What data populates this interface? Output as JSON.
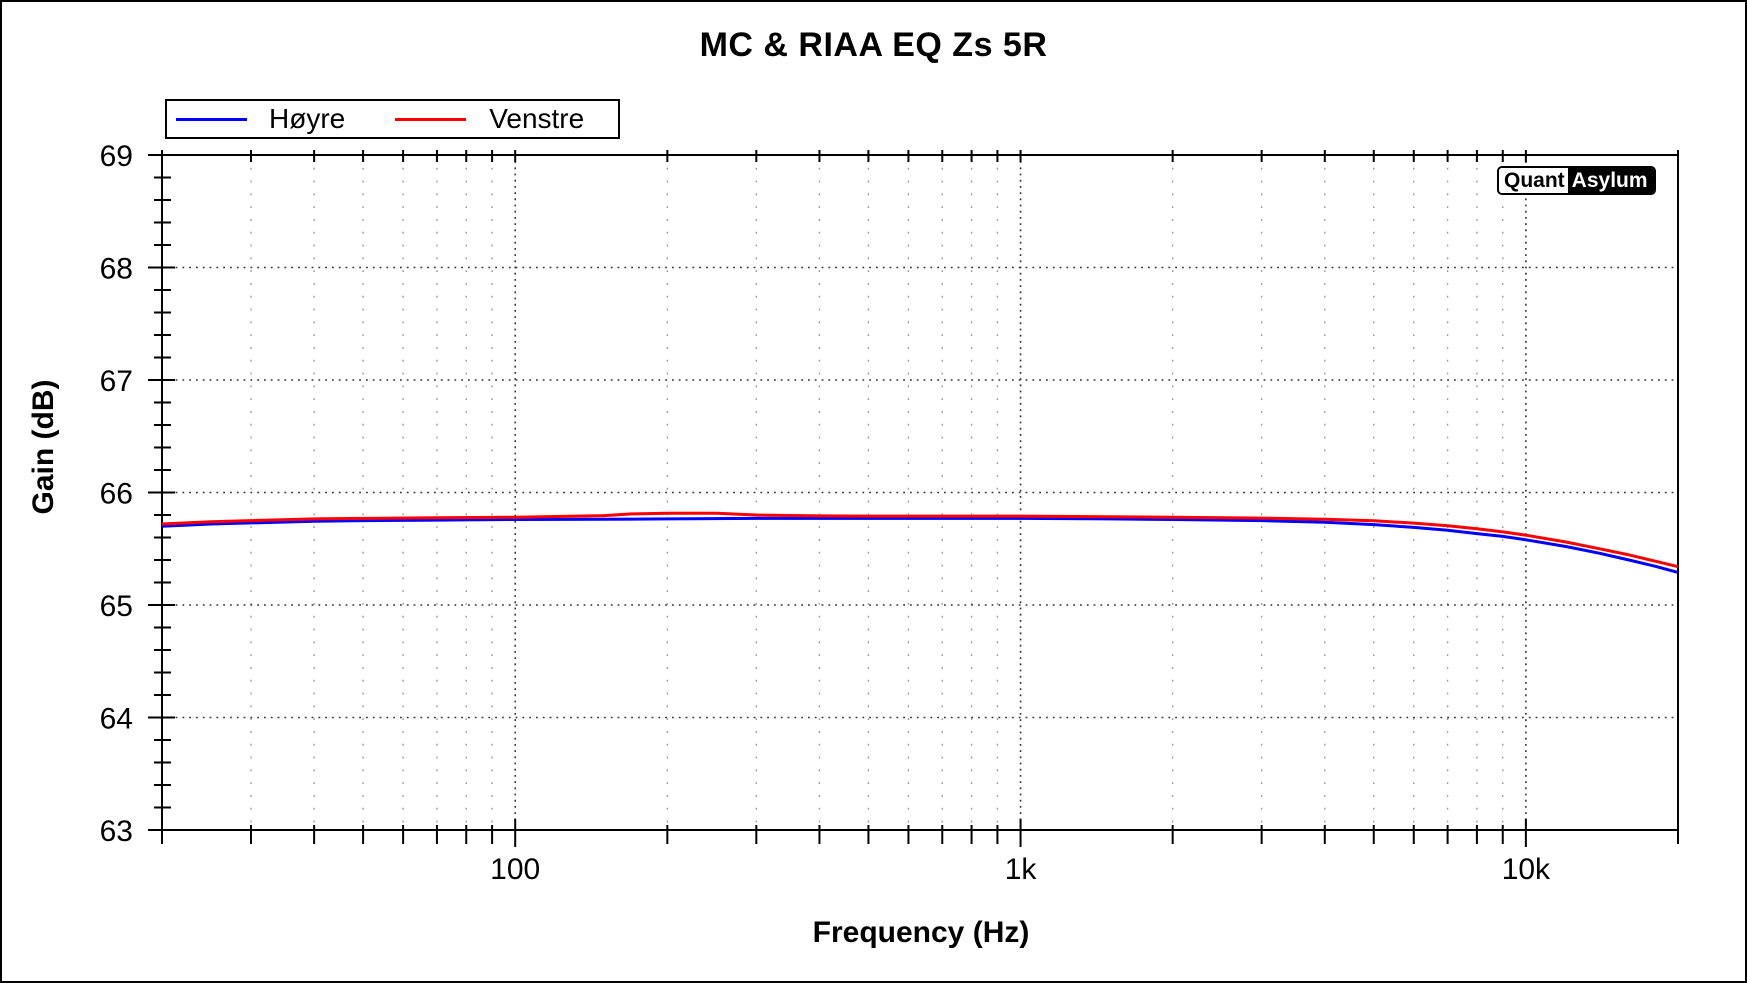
{
  "window": {
    "background": "#ffffff",
    "border_color": "#000000"
  },
  "watermark": {
    "part1": "Quant",
    "part2": "Asylum"
  },
  "chart_data": {
    "type": "line",
    "title": "MC & RIAA EQ Zs 5R",
    "xlabel": "Frequency (Hz)",
    "ylabel": "Gain (dB)",
    "x_scale": "log",
    "xlim": [
      20,
      20000
    ],
    "ylim": [
      63,
      69
    ],
    "y_major_ticks": [
      63,
      64,
      65,
      66,
      67,
      68,
      69
    ],
    "y_minor_step": 0.2,
    "x_major_ticks": [
      {
        "value": 100,
        "label": "100"
      },
      {
        "value": 1000,
        "label": "1k"
      },
      {
        "value": 10000,
        "label": "10k"
      }
    ],
    "x_minor_ticks": [
      20,
      30,
      40,
      50,
      60,
      70,
      80,
      90,
      100,
      200,
      300,
      400,
      500,
      600,
      700,
      800,
      900,
      1000,
      2000,
      3000,
      4000,
      5000,
      6000,
      7000,
      8000,
      9000,
      10000,
      20000
    ],
    "grid": {
      "horizontal_at": [
        64,
        65,
        66,
        67,
        68
      ],
      "vertical": "all_minor_ticks",
      "style": "dotted"
    },
    "legend_position": "top-left",
    "series": [
      {
        "name": "Høyre",
        "color": "#0000ff",
        "points": [
          [
            20,
            65.7
          ],
          [
            25,
            65.72
          ],
          [
            30,
            65.73
          ],
          [
            40,
            65.745
          ],
          [
            50,
            65.75
          ],
          [
            70,
            65.755
          ],
          [
            100,
            65.76
          ],
          [
            150,
            65.762
          ],
          [
            200,
            65.765
          ],
          [
            300,
            65.77
          ],
          [
            500,
            65.77
          ],
          [
            700,
            65.77
          ],
          [
            1000,
            65.77
          ],
          [
            1500,
            65.765
          ],
          [
            2000,
            65.76
          ],
          [
            3000,
            65.75
          ],
          [
            4000,
            65.735
          ],
          [
            5000,
            65.715
          ],
          [
            6000,
            65.69
          ],
          [
            7000,
            65.665
          ],
          [
            8000,
            65.635
          ],
          [
            9000,
            65.61
          ],
          [
            10000,
            65.58
          ],
          [
            12000,
            65.52
          ],
          [
            14000,
            65.46
          ],
          [
            16000,
            65.4
          ],
          [
            18000,
            65.345
          ],
          [
            20000,
            65.29
          ]
        ]
      },
      {
        "name": "Venstre",
        "color": "#ff0000",
        "points": [
          [
            20,
            65.72
          ],
          [
            25,
            65.74
          ],
          [
            30,
            65.75
          ],
          [
            40,
            65.765
          ],
          [
            50,
            65.77
          ],
          [
            70,
            65.775
          ],
          [
            100,
            65.78
          ],
          [
            150,
            65.795
          ],
          [
            170,
            65.81
          ],
          [
            200,
            65.815
          ],
          [
            250,
            65.815
          ],
          [
            300,
            65.8
          ],
          [
            400,
            65.792
          ],
          [
            500,
            65.79
          ],
          [
            700,
            65.79
          ],
          [
            1000,
            65.79
          ],
          [
            1500,
            65.785
          ],
          [
            2000,
            65.78
          ],
          [
            3000,
            65.772
          ],
          [
            4000,
            65.762
          ],
          [
            5000,
            65.748
          ],
          [
            6000,
            65.728
          ],
          [
            7000,
            65.705
          ],
          [
            8000,
            65.678
          ],
          [
            9000,
            65.65
          ],
          [
            10000,
            65.62
          ],
          [
            12000,
            65.56
          ],
          [
            14000,
            65.5
          ],
          [
            16000,
            65.445
          ],
          [
            18000,
            65.39
          ],
          [
            20000,
            65.34
          ]
        ]
      }
    ]
  }
}
